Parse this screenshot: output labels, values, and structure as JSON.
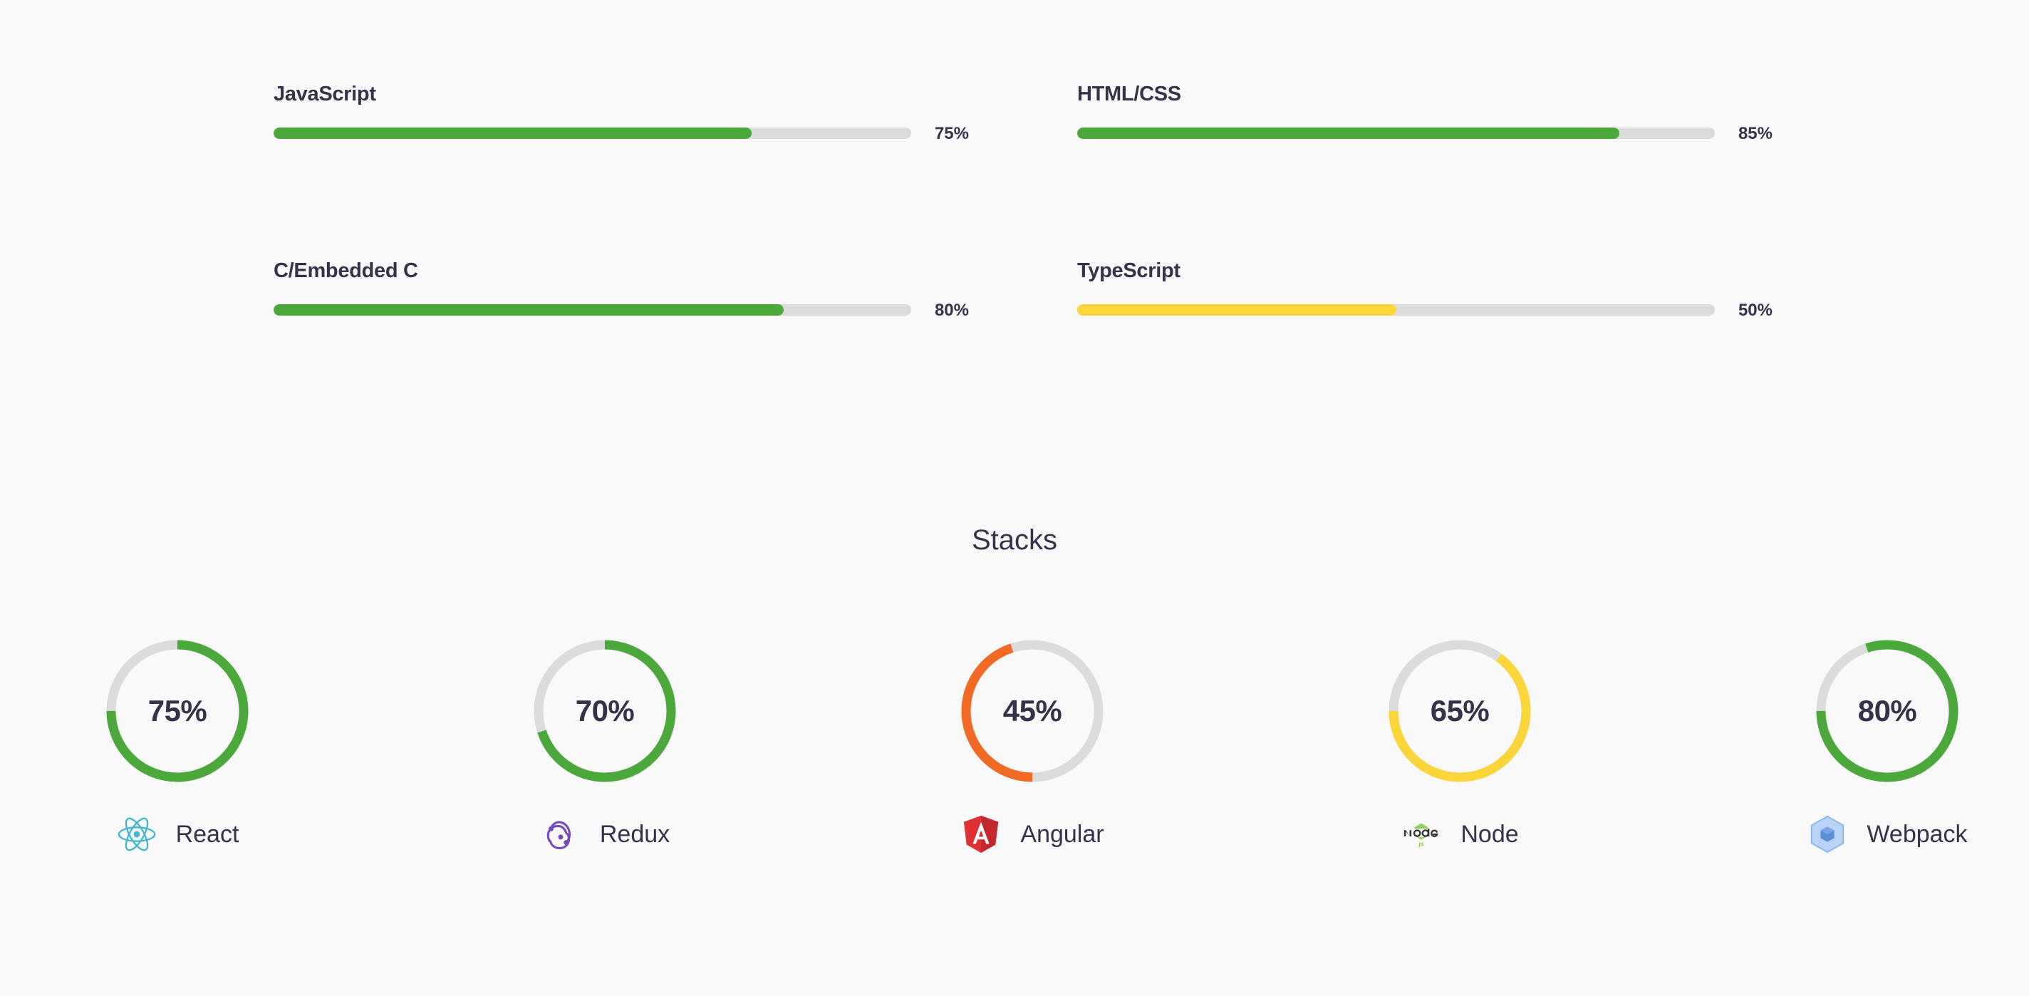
{
  "skills": [
    {
      "name": "JavaScript",
      "value": 75,
      "pct_label": "75%",
      "color": "#4aa93a"
    },
    {
      "name": "HTML/CSS",
      "value": 85,
      "pct_label": "85%",
      "color": "#4aa93a"
    },
    {
      "name": "C/Embedded C",
      "value": 80,
      "pct_label": "80%",
      "color": "#4aa93a"
    },
    {
      "name": "TypeScript",
      "value": 50,
      "pct_label": "50%",
      "color": "#fcd53a"
    }
  ],
  "stacks_title": "Stacks",
  "stacks": [
    {
      "name": "React",
      "value": 75,
      "pct_label": "75%",
      "color": "#4aa93a",
      "icon": "react-icon"
    },
    {
      "name": "Redux",
      "value": 70,
      "pct_label": "70%",
      "color": "#4aa93a",
      "icon": "redux-icon"
    },
    {
      "name": "Angular",
      "value": 45,
      "pct_label": "45%",
      "color": "#f26b26",
      "icon": "angular-icon"
    },
    {
      "name": "Node",
      "value": 65,
      "pct_label": "65%",
      "color": "#fcd53a",
      "icon": "node-icon"
    },
    {
      "name": "Webpack",
      "value": 80,
      "pct_label": "80%",
      "color": "#4aa93a",
      "icon": "webpack-icon"
    }
  ],
  "track_color": "#dcdcdc"
}
